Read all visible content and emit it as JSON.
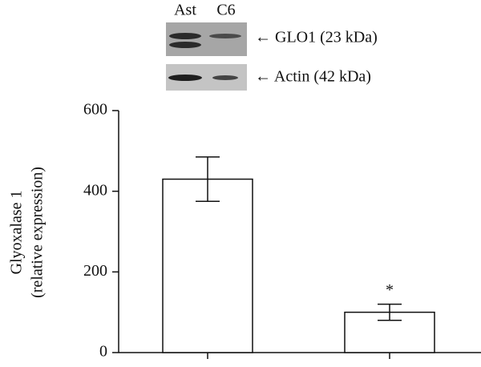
{
  "blot": {
    "lanes": [
      "Ast",
      "C6"
    ],
    "bands": [
      "← GLO1 (23 kDa)",
      "← Actin (42 kDa)"
    ]
  },
  "chart_data": {
    "type": "bar",
    "ylabel": [
      "Glyoxalase 1",
      "(relative expression)"
    ],
    "categories": [
      null,
      null
    ],
    "values": [
      430,
      100
    ],
    "errors": [
      55,
      20
    ],
    "significance": [
      null,
      "*"
    ],
    "color": "#ffffff",
    "ylim": [
      0,
      600
    ],
    "yticks": [
      0,
      200,
      400,
      600
    ],
    "grid": false
  }
}
